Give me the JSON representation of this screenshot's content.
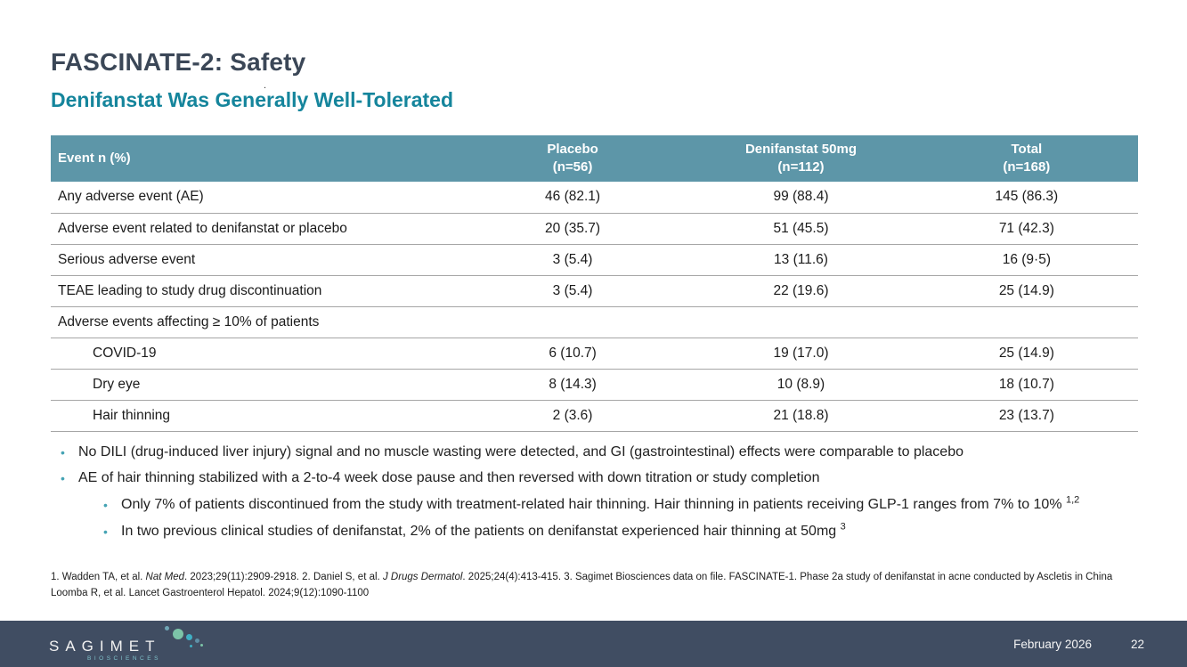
{
  "slide": {
    "title": "FASCINATE-2: Safety",
    "subtitle": "Denifanstat Was Generally Well-Tolerated",
    "stray_dot": ".",
    "bullet_glyph": "•"
  },
  "colors": {
    "table_header_bg": "#5d96a8",
    "title_text": "#3b4757",
    "subtitle_text": "#15859c",
    "bullet_marker": "#45a3b4",
    "footer_bg": "#404d62",
    "row_divider": "#a6a6a6"
  },
  "table": {
    "header": {
      "event": "Event n (%)",
      "placebo_line1": "Placebo",
      "placebo_line2": "(n=56)",
      "denifanstat_line1": "Denifanstat 50mg",
      "denifanstat_line2": "(n=112)",
      "total_line1": "Total",
      "total_line2": "(n=168)"
    },
    "rows": [
      {
        "label": "Any adverse event (AE)",
        "placebo": "46 (82.1)",
        "denifanstat": "99 (88.4)",
        "total": "145 (86.3)"
      },
      {
        "label": "Adverse event related to denifanstat or placebo",
        "placebo": "20 (35.7)",
        "denifanstat": "51 (45.5)",
        "total": "71 (42.3)"
      },
      {
        "label": "Serious adverse event",
        "placebo": "3 (5.4)",
        "denifanstat": "13 (11.6)",
        "total": "16 (9·5)"
      },
      {
        "label": "TEAE leading to study drug discontinuation",
        "placebo": "3 (5.4)",
        "denifanstat": "22 (19.6)",
        "total": "25 (14.9)"
      },
      {
        "label": "Adverse events affecting ≥ 10% of patients",
        "placebo": "",
        "denifanstat": "",
        "total": ""
      },
      {
        "label": "COVID-19",
        "placebo": "6 (10.7)",
        "denifanstat": "19 (17.0)",
        "total": "25 (14.9)"
      },
      {
        "label": "Dry eye",
        "placebo": "8 (14.3)",
        "denifanstat": "10 (8.9)",
        "total": "18 (10.7)"
      },
      {
        "label": "Hair thinning",
        "placebo": "2 (3.6)",
        "denifanstat": "21 (18.8)",
        "total": "23 (13.7)"
      }
    ]
  },
  "bullets": {
    "b1": "No DILI (drug-induced liver injury) signal and no muscle wasting were detected, and GI (gastrointestinal) effects were comparable to placebo",
    "b2": "AE of hair thinning stabilized with a 2-to-4 week dose pause and then reversed with down titration or study completion",
    "sb1_text": "Only 7% of patients discontinued from the study with treatment-related hair thinning. Hair thinning in patients receiving GLP-1 ranges from 7% to 10% ",
    "sb1_sup": "1,2",
    "sb2_text": "In two previous clinical studies of denifanstat, 2% of the patients on denifanstat experienced hair thinning at 50mg ",
    "sb2_sup": "3"
  },
  "footnotes": {
    "f1_a": "1. Wadden TA, et al. ",
    "f1_b": "Nat Med",
    "f1_c": ". 2023;29(11):2909-2918.  2. Daniel S, et al. ",
    "f1_d": "J Drugs Dermatol",
    "f1_e": ". 2025;24(4):413-415.  3. Sagimet Biosciences data on file. FASCINATE-1. Phase 2a study of denifanstat in acne conducted by Ascletis in China",
    "f2": "Loomba R, et al. Lancet Gastroenterol Hepatol. 2024;9(12):1090-1100"
  },
  "footer": {
    "logo_text": "SAGIMET",
    "logo_subtext": "BIOSCIENCES",
    "date": "February 2026",
    "page": "22"
  }
}
